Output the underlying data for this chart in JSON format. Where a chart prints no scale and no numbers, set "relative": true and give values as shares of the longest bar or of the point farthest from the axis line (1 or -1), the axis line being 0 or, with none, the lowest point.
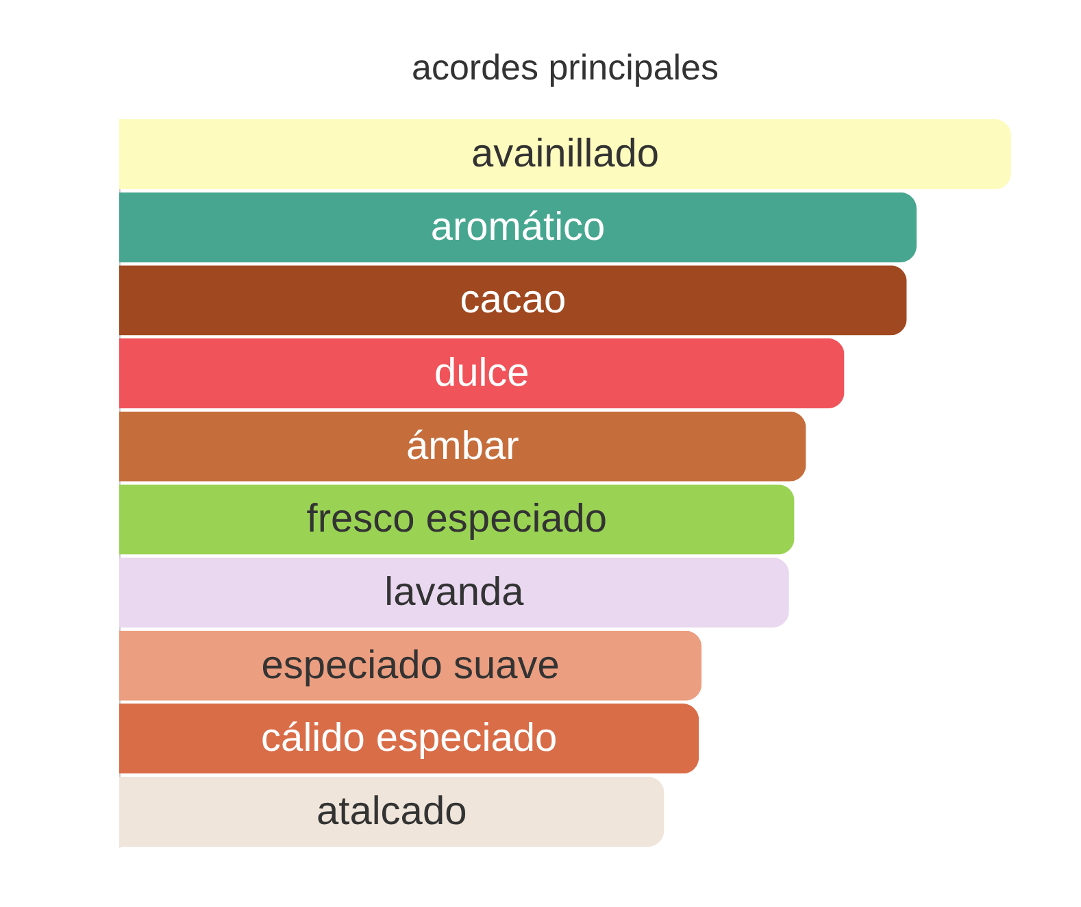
{
  "chart_data": {
    "type": "bar",
    "orientation": "horizontal",
    "relative": true,
    "title": "acordes principales",
    "categories": [
      "avainillado",
      "aromático",
      "cacao",
      "dulce",
      "ámbar",
      "fresco especiado",
      "lavanda",
      "especiado suave",
      "cálido especiado",
      "atalcado"
    ],
    "values": [
      1,
      0.894,
      0.883,
      0.813,
      0.77,
      0.757,
      0.751,
      0.653,
      0.65,
      0.611
    ],
    "colors": [
      "#fdfbbd",
      "#47a68f",
      "#a0481f",
      "#f0545a",
      "#c56e3c",
      "#9ad354",
      "#e9d8f0",
      "#eb9e80",
      "#d96d48",
      "#efe5da"
    ]
  }
}
